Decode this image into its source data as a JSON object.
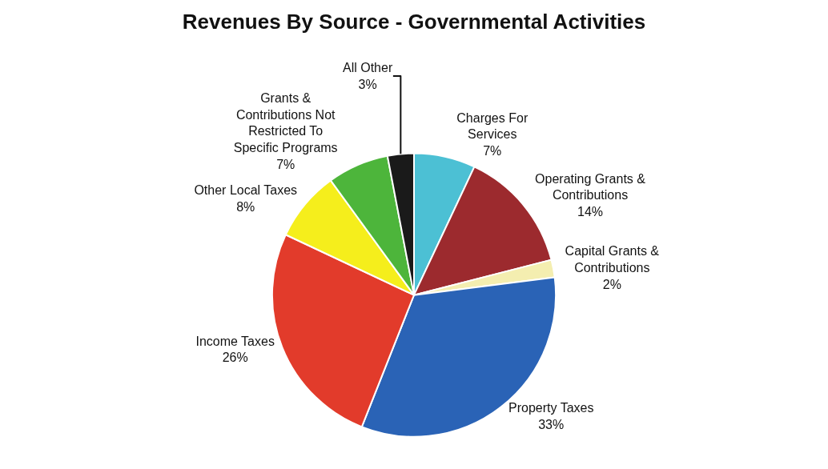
{
  "chart_data": {
    "type": "pie",
    "title": "Revenues By Source - Governmental Activities",
    "categories": [
      "Charges For Services",
      "Operating Grants & Contributions",
      "Capital Grants & Contributions",
      "Property Taxes",
      "Income Taxes",
      "Other Local Taxes",
      "Grants & Contributions Not Restricted To Specific Programs",
      "All Other"
    ],
    "values": [
      7,
      14,
      2,
      33,
      26,
      8,
      7,
      3
    ],
    "colors": [
      "#4cc0d4",
      "#9c2a2e",
      "#f4eeb0",
      "#2a63b6",
      "#e23b2b",
      "#f5ee1c",
      "#4db53b",
      "#1a1a1a"
    ],
    "value_labels": [
      "7%",
      "14%",
      "2%",
      "33%",
      "26%",
      "8%",
      "7%",
      "3%"
    ],
    "legend": false
  }
}
